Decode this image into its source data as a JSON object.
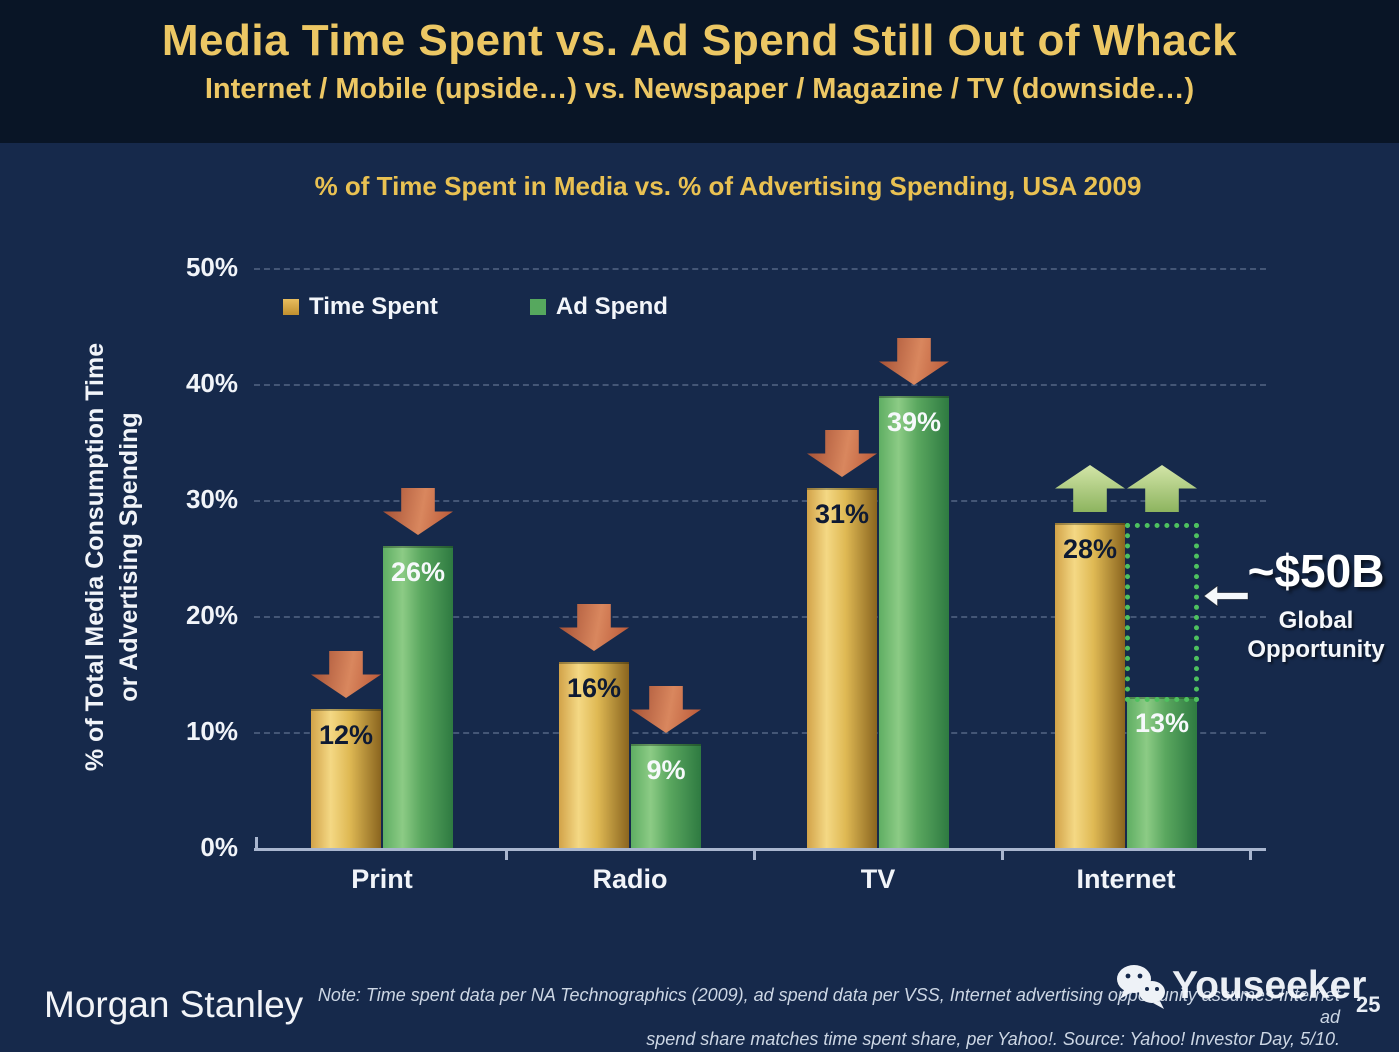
{
  "slide": {
    "title": "Media Time Spent vs. Ad Spend Still Out of Whack",
    "subtitle": "Internet / Mobile (upside…) vs. Newspaper / Magazine / TV (downside…)"
  },
  "chart_data": {
    "type": "bar",
    "title": "% of Time Spent in Media vs. % of Advertising Spending, USA 2009",
    "categories": [
      "Print",
      "Radio",
      "TV",
      "Internet"
    ],
    "series": [
      {
        "name": "Time Spent",
        "color_key": "gold",
        "color": "#d9a943",
        "values": [
          12,
          16,
          31,
          28
        ]
      },
      {
        "name": "Ad Spend",
        "color_key": "green",
        "color": "#56a85e",
        "values": [
          26,
          9,
          39,
          13
        ]
      }
    ],
    "value_suffix": "%",
    "trend_per_category": [
      "down",
      "down",
      "down",
      "up"
    ],
    "ylim": [
      0,
      50
    ],
    "ytick_step": 10,
    "yticks": [
      "0%",
      "10%",
      "20%",
      "30%",
      "40%",
      "50%"
    ],
    "ylabel_line1": "% of Total Media Consumption Time",
    "ylabel_line2": "or Advertising Spending",
    "grid": "horizontal dashed",
    "legend_position": "top-left inside plot",
    "opportunity": {
      "category": "Internet",
      "headline": "~$50B",
      "sub_line1": "Global",
      "sub_line2": "Opportunity"
    }
  },
  "colors": {
    "background": "#16294b",
    "header_background": "#091526",
    "title_gold": "#ecc764",
    "bar_gold": "#d9a943",
    "bar_green": "#56a85e",
    "arrow_down": "#c4603d",
    "arrow_up": "#a9cc7f",
    "opportunity_dotted": "#4ec15f",
    "axis": "#a9b6cf"
  },
  "footer": {
    "brand": "Morgan Stanley",
    "note_line1": "Note: Time spent data per NA Technographics (2009), ad spend data per VSS, Internet advertising opportunity assumes Internet ad",
    "note_line2": "spend share matches time spent share, per Yahoo!. Source: Yahoo! Investor Day, 5/10.",
    "watermark": "Youseeker",
    "page_number": "25"
  }
}
